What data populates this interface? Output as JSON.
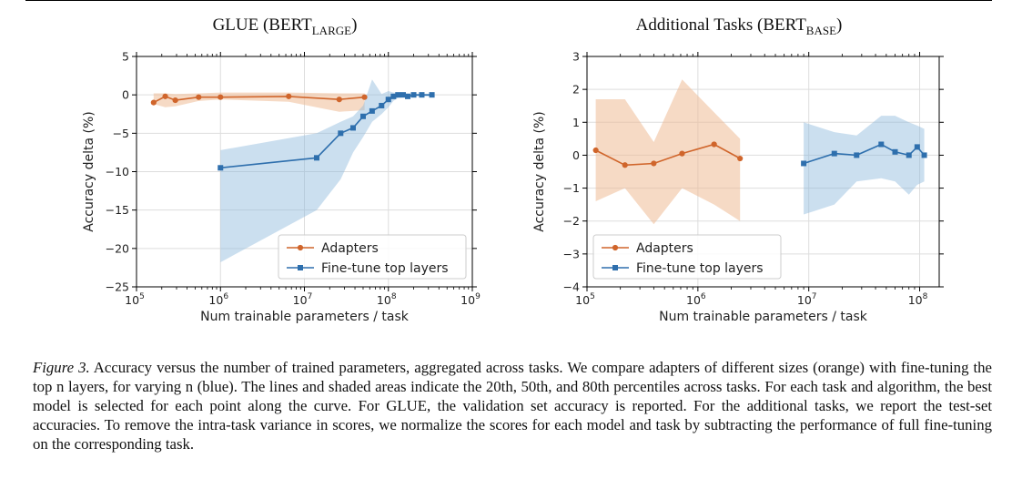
{
  "chart_data": [
    {
      "type": "line",
      "title": "GLUE (BERT",
      "title_sub": "LARGE",
      "title_suffix": ")",
      "xlabel": "Num trainable parameters / task",
      "ylabel": "Accuracy delta (%)",
      "xscale": "log",
      "xlim": [
        100000,
        1000000000
      ],
      "ylim": [
        -25,
        5
      ],
      "xticks": [
        {
          "base": "10",
          "exp": "5"
        },
        {
          "base": "10",
          "exp": "6"
        },
        {
          "base": "10",
          "exp": "7"
        },
        {
          "base": "10",
          "exp": "8"
        },
        {
          "base": "10",
          "exp": "9"
        }
      ],
      "yticks": [
        "5",
        "0",
        "−5",
        "−10",
        "−15",
        "−20",
        "−25"
      ],
      "ytick_values": [
        5,
        0,
        -5,
        -10,
        -15,
        -20,
        -25
      ],
      "grid": true,
      "legend_position": "lower-right",
      "series": [
        {
          "name": "Adapters",
          "color": "#d0652b",
          "marker": "circle",
          "x": [
            160000,
            220000,
            290000,
            550000,
            1000000,
            6500000,
            26000000,
            52000000
          ],
          "y": [
            -1.0,
            -0.2,
            -0.7,
            -0.3,
            -0.3,
            -0.2,
            -0.6,
            -0.3
          ],
          "band_upper": [
            0.2,
            0.2,
            0.1,
            0.2,
            0.3,
            0.3,
            0.2,
            0.2
          ],
          "band_lower": [
            -1.2,
            -1.6,
            -1.5,
            -0.8,
            -0.6,
            -0.9,
            -2.2,
            -2.0
          ]
        },
        {
          "name": "Fine-tune top layers",
          "color": "#2e6fad",
          "marker": "square",
          "x": [
            1000000,
            14000000,
            27000000,
            38000000,
            50000000,
            64000000,
            83000000,
            100000000,
            115000000,
            130000000,
            150000000,
            170000000,
            200000000,
            250000000,
            330000000
          ],
          "y": [
            -9.5,
            -8.2,
            -5.0,
            -4.3,
            -2.8,
            -2.1,
            -1.4,
            -0.6,
            -0.2,
            0.0,
            0.0,
            -0.2,
            0.0,
            0.0,
            0.0
          ],
          "band_upper": [
            -7.2,
            -5.0,
            -3.5,
            -2.8,
            -1.4,
            2.0,
            0.1,
            0.5,
            0.3,
            0.3,
            0.2,
            0.2,
            0.1,
            0.1,
            0.1
          ],
          "band_lower": [
            -21.8,
            -15.0,
            -11.0,
            -7.5,
            -5.5,
            -3.5,
            -2.5,
            -1.6,
            -0.8,
            -0.4,
            -0.3,
            -0.4,
            -0.2,
            -0.2,
            -0.2
          ]
        }
      ]
    },
    {
      "type": "line",
      "title": "Additional Tasks (BERT",
      "title_sub": "BASE",
      "title_suffix": ")",
      "xlabel": "Num trainable parameters / task",
      "ylabel": "Accuracy delta (%)",
      "xscale": "log",
      "xlim": [
        100000,
        150000000
      ],
      "ylim": [
        -4,
        3
      ],
      "xticks": [
        {
          "base": "10",
          "exp": "5"
        },
        {
          "base": "10",
          "exp": "6"
        },
        {
          "base": "10",
          "exp": "7"
        },
        {
          "base": "10",
          "exp": "8"
        }
      ],
      "yticks": [
        "3",
        "2",
        "1",
        "0",
        "−1",
        "−2",
        "−3",
        "−4"
      ],
      "ytick_values": [
        3,
        2,
        1,
        0,
        -1,
        -2,
        -3,
        -4
      ],
      "grid": true,
      "legend_position": "lower-left",
      "series": [
        {
          "name": "Adapters",
          "color": "#d0652b",
          "marker": "circle",
          "x": [
            120000,
            220000,
            400000,
            720000,
            1400000,
            2400000
          ],
          "y": [
            0.15,
            -0.3,
            -0.25,
            0.05,
            0.33,
            -0.1
          ],
          "band_upper": [
            1.7,
            1.7,
            0.4,
            2.3,
            1.3,
            0.5
          ],
          "band_lower": [
            -1.4,
            -1.0,
            -2.1,
            -1.0,
            -1.5,
            -2.0
          ]
        },
        {
          "name": "Fine-tune top layers",
          "color": "#2e6fad",
          "marker": "square",
          "x": [
            9000000,
            17000000,
            27000000,
            45000000,
            60000000,
            80000000,
            95000000,
            110000000
          ],
          "y": [
            -0.25,
            0.05,
            0.0,
            0.33,
            0.1,
            0.0,
            0.25,
            0.0
          ],
          "band_upper": [
            1.0,
            0.7,
            0.6,
            1.2,
            1.2,
            1.0,
            0.9,
            0.8
          ],
          "band_lower": [
            -1.8,
            -1.5,
            -0.8,
            -0.7,
            -0.8,
            -1.2,
            -0.9,
            -0.8
          ]
        }
      ]
    }
  ],
  "caption": {
    "label": "Figure 3.",
    "text": " Accuracy versus the number of trained parameters, aggregated across tasks. We compare adapters of different sizes (orange) with fine-tuning the top n layers, for varying n (blue). The lines and shaded areas indicate the 20th, 50th, and 80th percentiles across tasks. For each task and algorithm, the best model is selected for each point along the curve. For GLUE, the validation set accuracy is reported. For the additional tasks, we report the test-set accuracies. To remove the intra-task variance in scores, we normalize the scores for each model and task by subtracting the performance of full fine-tuning on the corresponding task."
  }
}
